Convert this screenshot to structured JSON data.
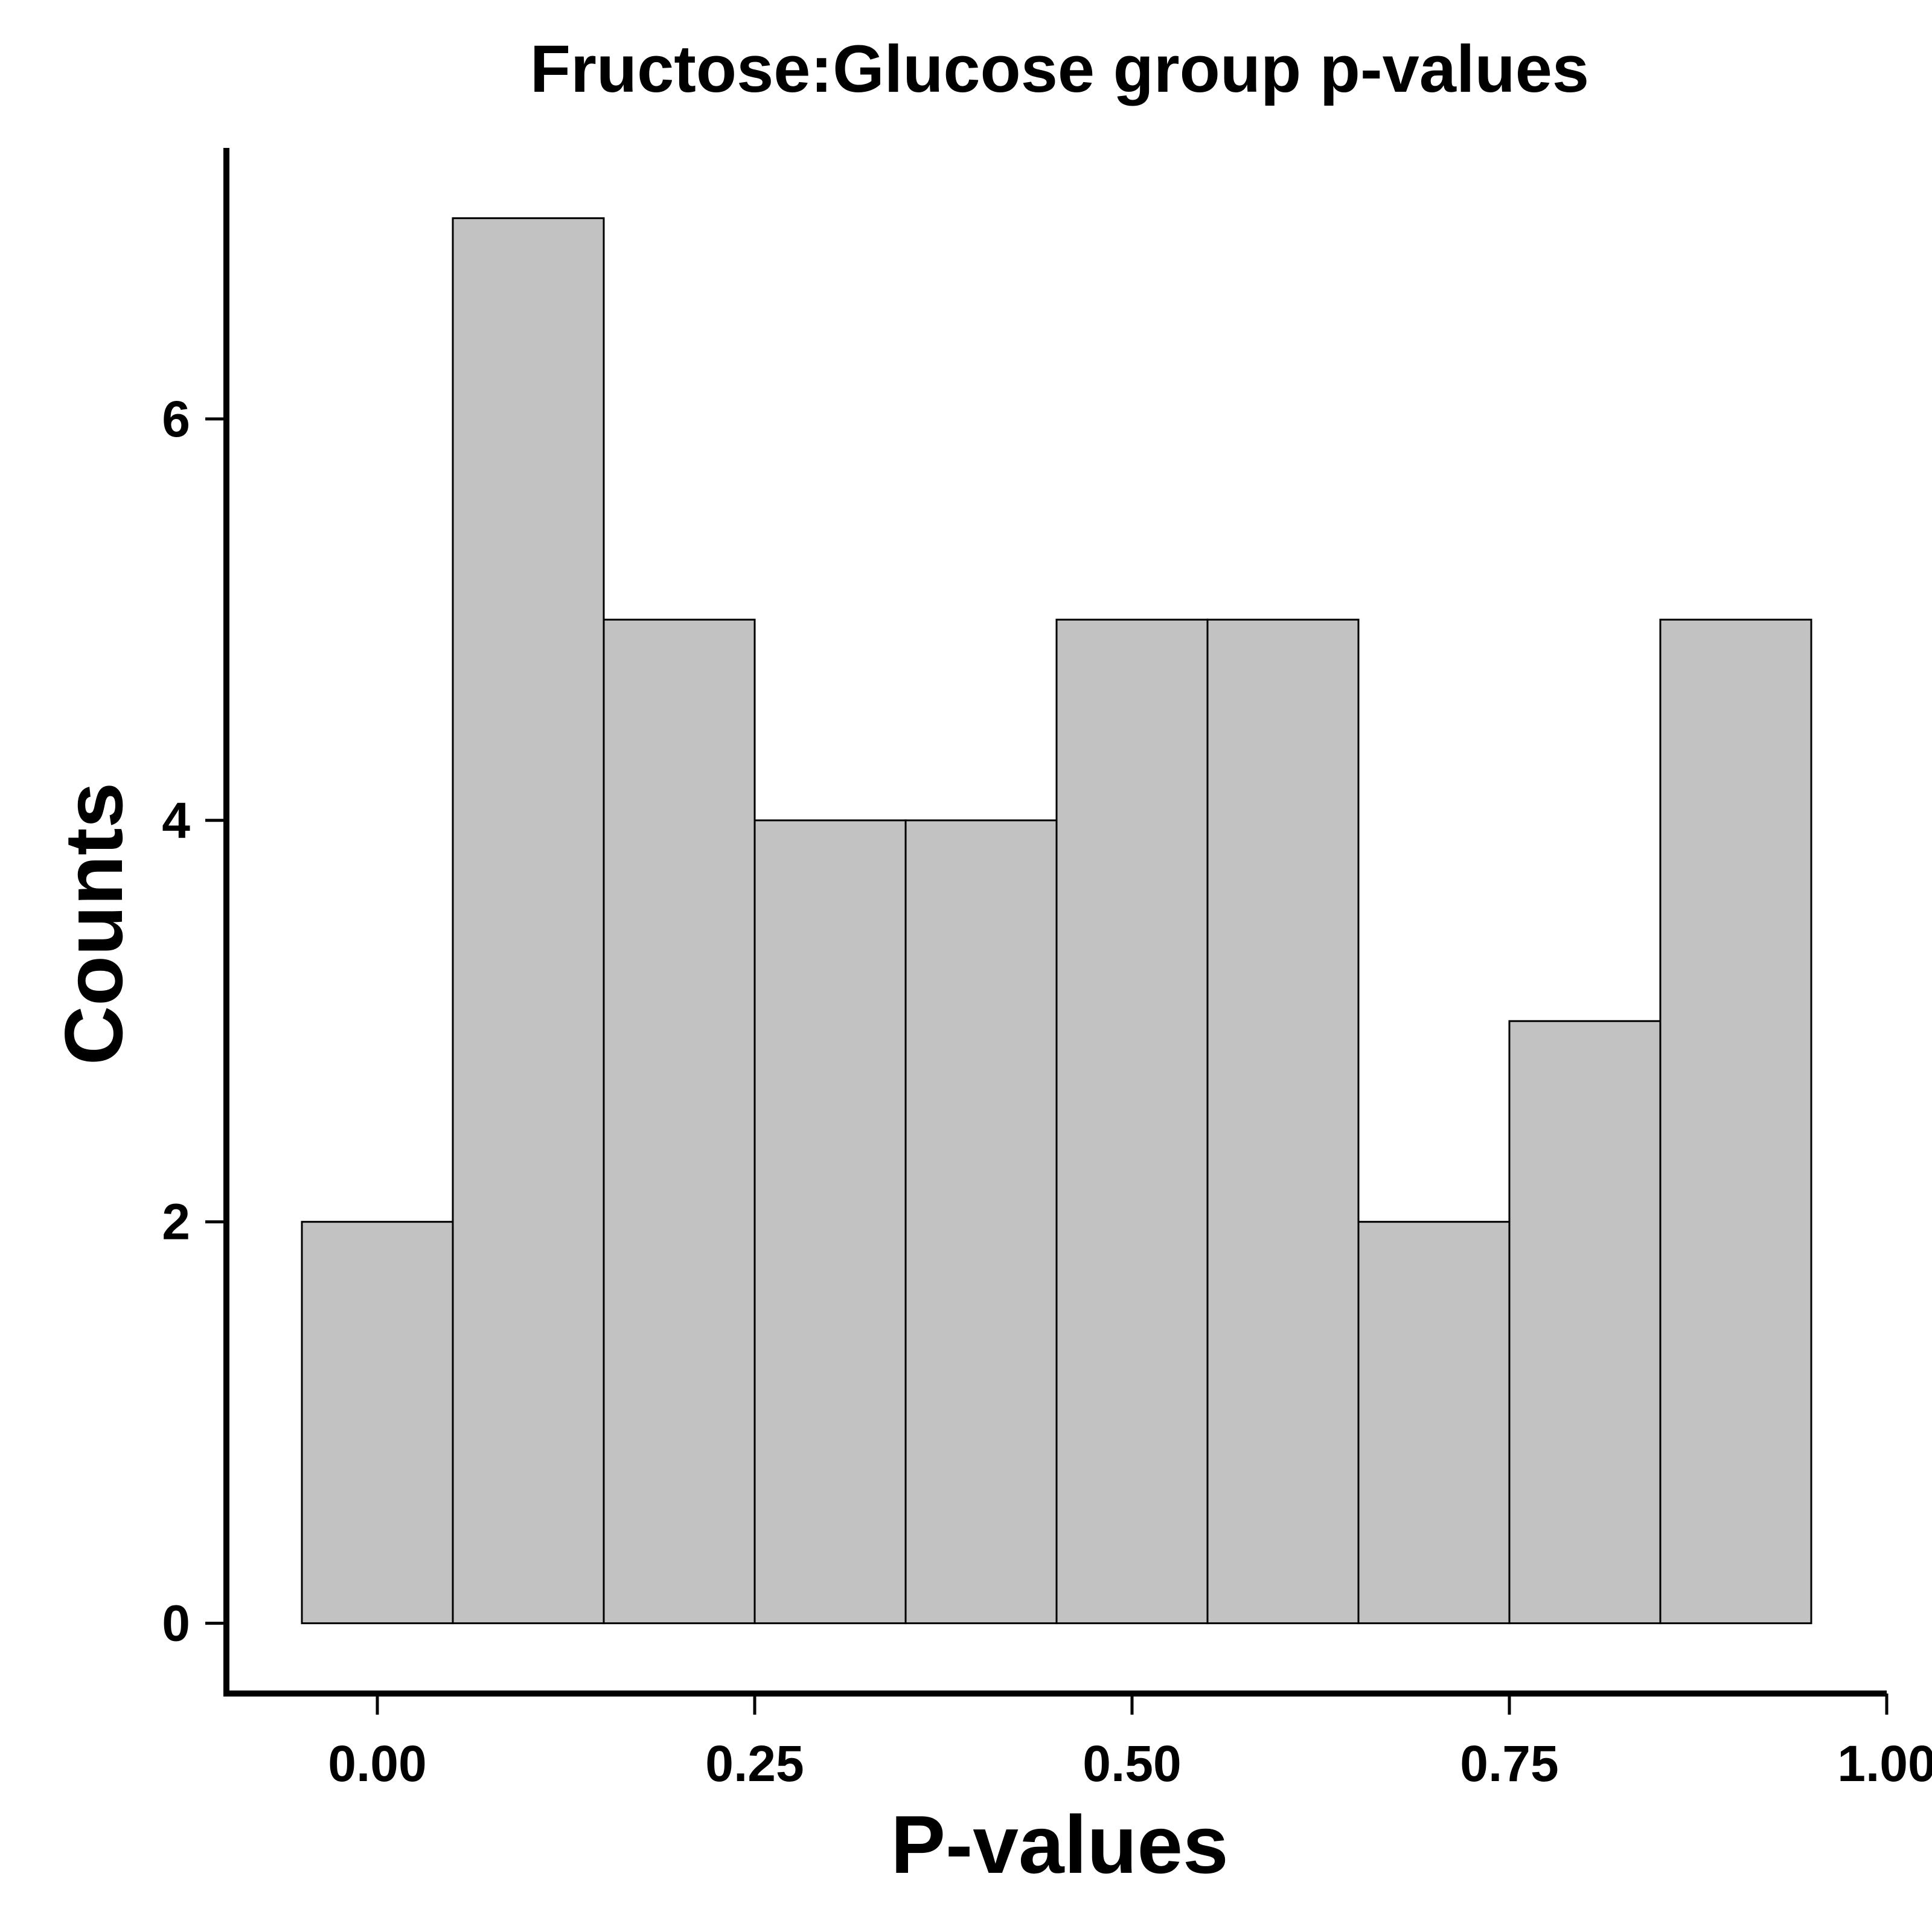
{
  "chart_data": {
    "type": "bar",
    "title": "Fructose:Glucose group p-values",
    "xlabel": "P-values",
    "ylabel": "Counts",
    "bins": [
      {
        "x0": -0.05,
        "x1": 0.05,
        "count": 2
      },
      {
        "x0": 0.05,
        "x1": 0.15,
        "count": 7
      },
      {
        "x0": 0.15,
        "x1": 0.25,
        "count": 5
      },
      {
        "x0": 0.25,
        "x1": 0.35,
        "count": 4
      },
      {
        "x0": 0.35,
        "x1": 0.45,
        "count": 4
      },
      {
        "x0": 0.45,
        "x1": 0.55,
        "count": 5
      },
      {
        "x0": 0.55,
        "x1": 0.65,
        "count": 5
      },
      {
        "x0": 0.65,
        "x1": 0.75,
        "count": 2
      },
      {
        "x0": 0.75,
        "x1": 0.85,
        "count": 3
      },
      {
        "x0": 0.85,
        "x1": 0.95,
        "count": 5
      }
    ],
    "x_ticks": [
      "0.00",
      "0.25",
      "0.50",
      "0.75",
      "1.00"
    ],
    "y_ticks": [
      "0",
      "2",
      "4",
      "6"
    ],
    "xlim": [
      -0.1,
      1.0
    ],
    "ylim": [
      -0.35,
      7.35
    ],
    "grid": false,
    "legend": "none",
    "bar_fill": "#c2c2c2",
    "bar_stroke": "#000000"
  }
}
